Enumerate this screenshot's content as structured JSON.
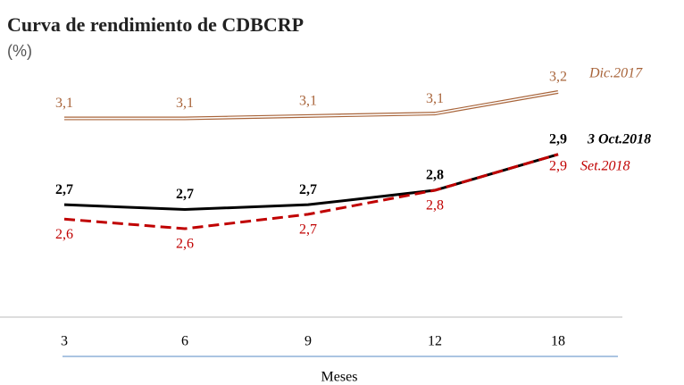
{
  "chart_data": {
    "type": "line",
    "title": "Curva de rendimiento de CDBCRP",
    "subtitle": "(%)",
    "x_label": "Meses",
    "categories": [
      "3",
      "6",
      "9",
      "12",
      "18"
    ],
    "series": [
      {
        "name": "Dic.2017",
        "color": "#a8643a",
        "values": [
          3.06,
          3.06,
          3.07,
          3.08,
          3.17
        ],
        "value_labels": [
          "3,1",
          "3,1",
          "3,1",
          "3,1",
          "3,2"
        ]
      },
      {
        "name": "3 Oct.2018",
        "color": "#000000",
        "values": [
          2.7,
          2.68,
          2.7,
          2.76,
          2.91
        ],
        "value_labels": [
          "2,7",
          "2,7",
          "2,7",
          "2,8",
          "2,9"
        ]
      },
      {
        "name": "Set.2018",
        "color": "#c00000",
        "values": [
          2.64,
          2.6,
          2.66,
          2.76,
          2.91
        ],
        "value_labels": [
          "2,6",
          "2,6",
          "2,7",
          "2,8",
          "2,9"
        ]
      }
    ]
  }
}
